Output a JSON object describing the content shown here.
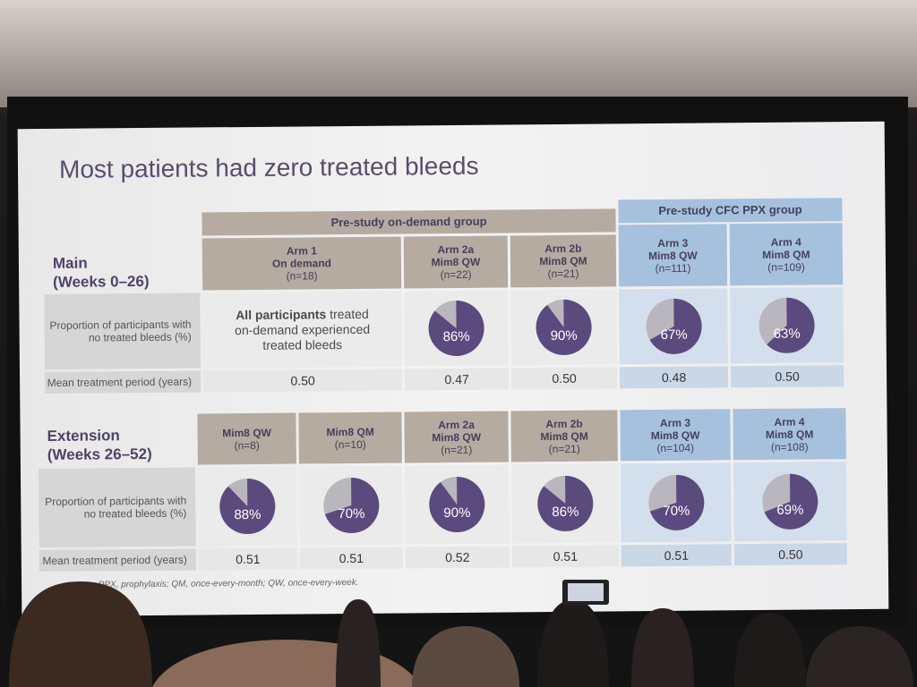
{
  "slide": {
    "title": "Most patients had zero treated bleeds",
    "main": {
      "section": "Main\n(Weeks 0–26)",
      "group_on_demand": "Pre-study on-demand group",
      "group_cfc": "Pre-study CFC PPX group",
      "row_label_proportion": "Proportion of participants with no treated bleeds (%)",
      "row_label_mean": "Mean treatment period (years)",
      "arm1_note_bold": "All participants",
      "arm1_note_rest": " treated on-demand experienced treated bleeds",
      "arms": [
        {
          "name": "Arm 1\nOn demand",
          "n": "(n=18)",
          "pct": null,
          "mean": "0.50",
          "group": "tan"
        },
        {
          "name": "Arm 2a\nMim8 QW",
          "n": "(n=22)",
          "pct": 86,
          "pct_label": "86%",
          "mean": "0.47",
          "group": "tan"
        },
        {
          "name": "Arm 2b\nMim8 QM",
          "n": "(n=21)",
          "pct": 90,
          "pct_label": "90%",
          "mean": "0.50",
          "group": "tan"
        },
        {
          "name": "Arm 3\nMim8 QW",
          "n": "(n=111)",
          "pct": 67,
          "pct_label": "67%",
          "mean": "0.48",
          "group": "blue"
        },
        {
          "name": "Arm 4\nMim8 QM",
          "n": "(n=109)",
          "pct": 63,
          "pct_label": "63%",
          "mean": "0.50",
          "group": "blue"
        }
      ]
    },
    "extension": {
      "section": "Extension\n(Weeks 26–52)",
      "row_label_proportion": "Proportion of participants with no treated bleeds (%)",
      "row_label_mean": "Mean treatment period (years)",
      "arms": [
        {
          "name": "Mim8 QW",
          "n": "(n=8)",
          "pct": 88,
          "pct_label": "88%",
          "mean": "0.51",
          "group": "tan"
        },
        {
          "name": "Mim8 QM",
          "n": "(n=10)",
          "pct": 70,
          "pct_label": "70%",
          "mean": "0.51",
          "group": "tan"
        },
        {
          "name": "Arm 2a\nMim8 QW",
          "n": "(n=21)",
          "pct": 90,
          "pct_label": "90%",
          "mean": "0.52",
          "group": "tan"
        },
        {
          "name": "Arm 2b\nMim8 QM",
          "n": "(n=21)",
          "pct": 86,
          "pct_label": "86%",
          "mean": "0.51",
          "group": "tan"
        },
        {
          "name": "Arm 3\nMim8 QW",
          "n": "(n=104)",
          "pct": 70,
          "pct_label": "70%",
          "mean": "0.51",
          "group": "blue"
        },
        {
          "name": "Arm 4\nMim8 QM",
          "n": "(n=108)",
          "pct": 69,
          "pct_label": "69%",
          "mean": "0.50",
          "group": "blue"
        }
      ]
    },
    "footnote": "…trate; PPX, prophylaxis; QM, once-every-month; QW, once-every-week.",
    "colors": {
      "pie_fill": "#5b4a7e",
      "pie_rest": "#b9b7bd",
      "tan": "#b5aba1",
      "blue": "#a6c1dd"
    }
  }
}
